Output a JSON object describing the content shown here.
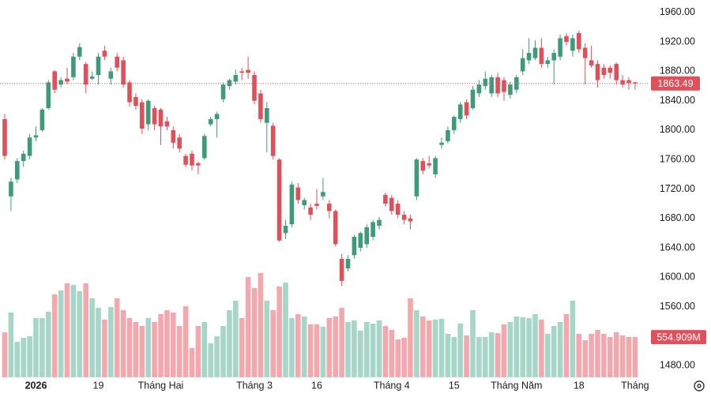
{
  "chart_data": {
    "type": "candlestick",
    "categories": [
      null,
      null,
      null,
      null,
      null,
      "2026",
      null,
      null,
      null,
      null,
      null,
      null,
      null,
      null,
      null,
      "19",
      null,
      null,
      null,
      null,
      null,
      null,
      null,
      null,
      null,
      "Tháng Hai",
      null,
      null,
      null,
      null,
      null,
      null,
      null,
      null,
      null,
      null,
      null,
      null,
      null,
      null,
      "Tháng 3",
      null,
      null,
      null,
      null,
      null,
      null,
      null,
      null,
      null,
      "16",
      null,
      null,
      null,
      null,
      null,
      null,
      null,
      null,
      null,
      null,
      null,
      "Tháng 4",
      null,
      null,
      null,
      null,
      null,
      null,
      null,
      null,
      null,
      "15",
      null,
      null,
      null,
      null,
      null,
      null,
      null,
      null,
      null,
      "Tháng Năm",
      null,
      null,
      null,
      null,
      null,
      null,
      null,
      null,
      null,
      "18",
      null,
      null,
      null,
      null,
      null,
      null,
      null,
      null,
      "Tháng"
    ],
    "open": [
      1815,
      1710,
      1733,
      1758,
      1765,
      1790,
      1800,
      1830,
      1880,
      1862,
      1870,
      1872,
      1900,
      1890,
      1870,
      1875,
      1908,
      1870,
      1900,
      1895,
      1865,
      1845,
      1838,
      1808,
      1830,
      1828,
      1812,
      1800,
      1790,
      1765,
      1768,
      1755,
      1762,
      1808,
      1815,
      1842,
      1860,
      1866,
      1880,
      1882,
      1875,
      1850,
      1810,
      1806,
      1760,
      1660,
      1672,
      1722,
      1698,
      1695,
      1700,
      1710,
      1700,
      1690,
      1625,
      1612,
      1630,
      1640,
      1645,
      1655,
      1670,
      1712,
      1708,
      1700,
      1685,
      1680,
      1710,
      1758,
      1755,
      1740,
      1780,
      1785,
      1800,
      1815,
      1838,
      1830,
      1850,
      1860,
      1850,
      1872,
      1868,
      1848,
      1855,
      1880,
      1895,
      1898,
      1912,
      1890,
      1895,
      1900,
      1928,
      1908,
      1932,
      1912,
      1895,
      1890,
      1885,
      1885,
      1890,
      1868,
      1868,
      1865
    ],
    "high": [
      1822,
      1735,
      1762,
      1772,
      1795,
      1805,
      1830,
      1868,
      1882,
      1872,
      1885,
      1905,
      1918,
      1893,
      1880,
      1905,
      1915,
      1885,
      1905,
      1900,
      1868,
      1850,
      1842,
      1842,
      1833,
      1830,
      1818,
      1805,
      1795,
      1768,
      1772,
      1757,
      1795,
      1818,
      1825,
      1865,
      1870,
      1882,
      1885,
      1900,
      1880,
      1855,
      1838,
      1810,
      1762,
      1678,
      1730,
      1728,
      1708,
      1700,
      1720,
      1735,
      1705,
      1692,
      1632,
      1630,
      1658,
      1662,
      1672,
      1678,
      1682,
      1715,
      1712,
      1705,
      1690,
      1685,
      1762,
      1762,
      1765,
      1765,
      1790,
      1805,
      1820,
      1838,
      1842,
      1860,
      1868,
      1880,
      1875,
      1878,
      1872,
      1866,
      1875,
      1910,
      1925,
      1922,
      1925,
      1900,
      1910,
      1930,
      1932,
      1930,
      1935,
      1918,
      1915,
      1895,
      1890,
      1888,
      1892,
      1875,
      1872,
      1866
    ],
    "low": [
      1760,
      1690,
      1728,
      1750,
      1760,
      1785,
      1798,
      1828,
      1850,
      1858,
      1862,
      1868,
      1895,
      1850,
      1868,
      1862,
      1895,
      1862,
      1880,
      1858,
      1832,
      1828,
      1795,
      1800,
      1800,
      1780,
      1800,
      1775,
      1770,
      1750,
      1745,
      1740,
      1760,
      1805,
      1790,
      1838,
      1855,
      1862,
      1868,
      1870,
      1835,
      1810,
      1770,
      1760,
      1648,
      1652,
      1668,
      1700,
      1692,
      1678,
      1692,
      1705,
      1680,
      1642,
      1588,
      1608,
      1625,
      1635,
      1640,
      1650,
      1665,
      1696,
      1685,
      1680,
      1672,
      1665,
      1705,
      1740,
      1748,
      1735,
      1775,
      1782,
      1795,
      1810,
      1815,
      1828,
      1845,
      1855,
      1845,
      1845,
      1840,
      1843,
      1850,
      1875,
      1890,
      1895,
      1885,
      1885,
      1862,
      1895,
      1915,
      1900,
      1905,
      1862,
      1885,
      1858,
      1870,
      1870,
      1862,
      1858,
      1855,
      1855
    ],
    "close": [
      1765,
      1730,
      1758,
      1768,
      1790,
      1793,
      1828,
      1865,
      1855,
      1868,
      1866,
      1900,
      1913,
      1862,
      1873,
      1900,
      1900,
      1880,
      1885,
      1862,
      1838,
      1833,
      1802,
      1840,
      1808,
      1805,
      1805,
      1783,
      1775,
      1753,
      1752,
      1752,
      1792,
      1815,
      1822,
      1862,
      1868,
      1875,
      1878,
      1878,
      1840,
      1815,
      1830,
      1765,
      1650,
      1670,
      1726,
      1705,
      1705,
      1685,
      1697,
      1716,
      1690,
      1645,
      1595,
      1625,
      1655,
      1660,
      1668,
      1675,
      1678,
      1700,
      1690,
      1685,
      1678,
      1676,
      1760,
      1745,
      1752,
      1762,
      1783,
      1800,
      1818,
      1835,
      1820,
      1855,
      1862,
      1870,
      1872,
      1850,
      1852,
      1862,
      1872,
      1898,
      1905,
      1912,
      1890,
      1895,
      1905,
      1925,
      1920,
      1925,
      1910,
      1898,
      1888,
      1868,
      1875,
      1878,
      1868,
      1862,
      1864,
      1863.49
    ],
    "volume": [
      620,
      894,
      490,
      545,
      567,
      818,
      818,
      905,
      1145,
      1200,
      1297,
      1275,
      1188,
      1297,
      1090,
      960,
      796,
      970,
      1090,
      927,
      818,
      763,
      708,
      818,
      763,
      872,
      927,
      894,
      708,
      981,
      403,
      708,
      763,
      469,
      567,
      708,
      927,
      1057,
      818,
      1384,
      1232,
      1439,
      1057,
      927,
      1253,
      1308,
      818,
      872,
      839,
      730,
      730,
      698,
      818,
      839,
      960,
      763,
      785,
      643,
      763,
      741,
      785,
      708,
      654,
      523,
      545,
      1090,
      927,
      839,
      785,
      796,
      807,
      600,
      556,
      741,
      578,
      927,
      556,
      556,
      621,
      610,
      730,
      763,
      839,
      828,
      818,
      872,
      796,
      600,
      708,
      763,
      872,
      1057,
      600,
      512,
      600,
      654,
      600,
      556,
      621,
      578,
      556,
      554.909
    ],
    "volume_label": "554.909M",
    "up_color": "#3f9a7b",
    "down_color": "#e0505a",
    "volume_up_color": "#a5d6c8",
    "volume_down_color": "#f3a8ae",
    "ylim": [
      1464,
      1977
    ],
    "yticks": [
      {
        "value": 1960,
        "label": "1960.00"
      },
      {
        "value": 1920,
        "label": "1920.00"
      },
      {
        "value": 1880,
        "label": "1880.00"
      },
      {
        "value": 1840,
        "label": "1840.00"
      },
      {
        "value": 1800,
        "label": "1800.00"
      },
      {
        "value": 1760,
        "label": "1760.00"
      },
      {
        "value": 1720,
        "label": "1720.00"
      },
      {
        "value": 1680,
        "label": "1680.00"
      },
      {
        "value": 1640,
        "label": "1640.00"
      },
      {
        "value": 1600,
        "label": "1600.00"
      },
      {
        "value": 1560,
        "label": "1560.00"
      },
      {
        "value": 1480,
        "label": "1480.00"
      }
    ],
    "y2lim": [
      0,
      1700
    ],
    "grid": false
  }
}
